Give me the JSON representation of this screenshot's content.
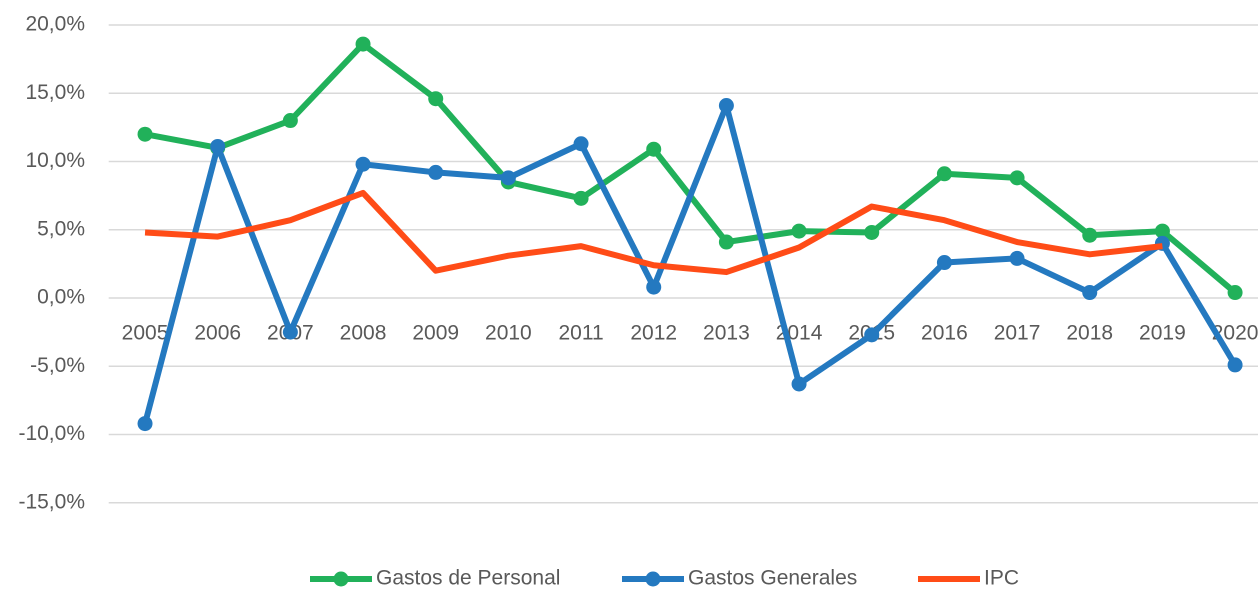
{
  "chart_data": {
    "type": "line",
    "categories": [
      "2005",
      "2006",
      "2007",
      "2008",
      "2009",
      "2010",
      "2011",
      "2012",
      "2013",
      "2014",
      "2015",
      "2016",
      "2017",
      "2018",
      "2019",
      "2020"
    ],
    "series": [
      {
        "name": "Gastos de Personal",
        "color": "#21b15a",
        "values": [
          12.0,
          11.0,
          13.0,
          18.6,
          14.6,
          8.5,
          7.3,
          10.9,
          4.1,
          4.9,
          4.8,
          9.1,
          8.8,
          4.6,
          4.9,
          0.4
        ]
      },
      {
        "name": "Gastos Generales",
        "color": "#2479c0",
        "values": [
          -9.2,
          11.1,
          -2.5,
          9.8,
          9.2,
          8.8,
          11.3,
          0.8,
          14.1,
          -6.3,
          -2.7,
          2.6,
          2.9,
          0.4,
          4.0,
          -4.9
        ]
      },
      {
        "name": "IPC",
        "color": "#ff4c17",
        "values": [
          4.8,
          4.5,
          5.7,
          7.7,
          2.0,
          3.1,
          3.8,
          2.4,
          1.9,
          3.7,
          6.7,
          5.7,
          4.1,
          3.2,
          3.8,
          null
        ]
      }
    ],
    "ylim": [
      -20,
      20
    ],
    "yticks": [
      {
        "value": -15,
        "label": "-15,0%"
      },
      {
        "value": -10,
        "label": "-10,0%"
      },
      {
        "value": -5,
        "label": "-5,0%"
      },
      {
        "value": 0,
        "label": "0,0%"
      },
      {
        "value": 5,
        "label": "5,0%"
      },
      {
        "value": 10,
        "label": "10,0%"
      },
      {
        "value": 15,
        "label": "15,0%"
      },
      {
        "value": 20,
        "label": "20,0%"
      }
    ],
    "grid": true
  }
}
